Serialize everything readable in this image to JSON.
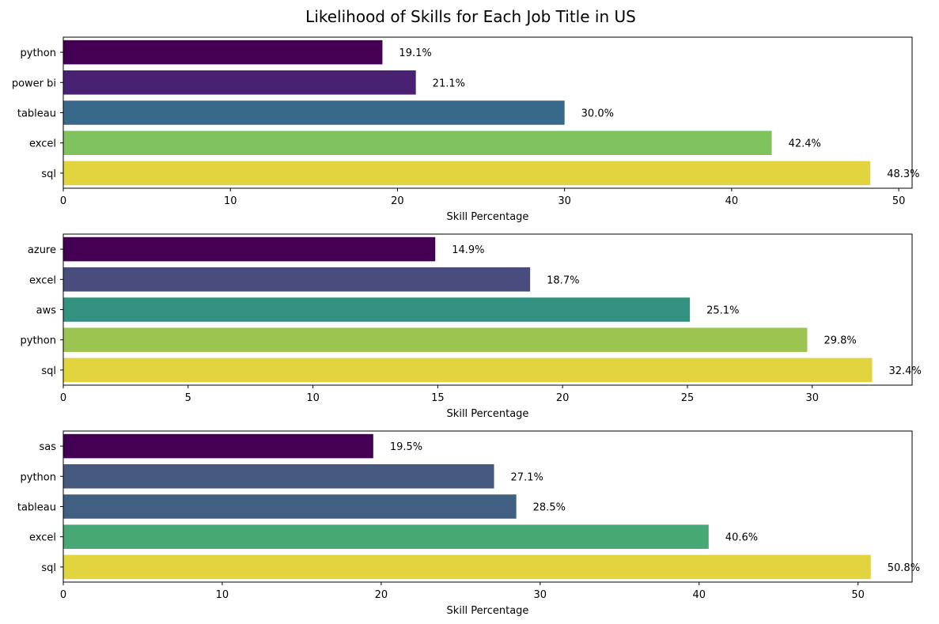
{
  "figure": {
    "title": "Likelihood of Skills for Each Job Title in US"
  },
  "chart_data": [
    {
      "type": "bar",
      "orientation": "horizontal",
      "categories": [
        "python",
        "power bi",
        "tableau",
        "excel",
        "sql"
      ],
      "values": [
        19.1,
        21.1,
        30.0,
        42.4,
        48.3
      ],
      "value_labels": [
        "19.1%",
        "21.1%",
        "30.0%",
        "42.4%",
        "48.3%"
      ],
      "colors": [
        "#440154",
        "#482173",
        "#39698a",
        "#80c25e",
        "#e1d43f"
      ],
      "xlabel": "Skill Percentage",
      "ylabel": "",
      "xlim": [
        0,
        50.8
      ],
      "xticks": [
        0,
        10,
        20,
        30,
        40,
        50
      ],
      "grid": false,
      "legend": "none"
    },
    {
      "type": "bar",
      "orientation": "horizontal",
      "categories": [
        "azure",
        "excel",
        "aws",
        "python",
        "sql"
      ],
      "values": [
        14.9,
        18.7,
        25.1,
        29.8,
        32.4
      ],
      "value_labels": [
        "14.9%",
        "18.7%",
        "25.1%",
        "29.8%",
        "32.4%"
      ],
      "colors": [
        "#440154",
        "#484d7e",
        "#32927f",
        "#9bc450",
        "#e1d43f"
      ],
      "xlabel": "Skill Percentage",
      "ylabel": "",
      "xlim": [
        0,
        34
      ],
      "xticks": [
        0,
        5,
        10,
        15,
        20,
        25,
        30
      ],
      "grid": false,
      "legend": "none"
    },
    {
      "type": "bar",
      "orientation": "horizontal",
      "categories": [
        "sas",
        "python",
        "tableau",
        "excel",
        "sql"
      ],
      "values": [
        19.5,
        27.1,
        28.5,
        40.6,
        50.8
      ],
      "value_labels": [
        "19.5%",
        "27.1%",
        "28.5%",
        "40.6%",
        "50.8%"
      ],
      "colors": [
        "#440154",
        "#45597f",
        "#415f82",
        "#47a775",
        "#e1d43f"
      ],
      "xlabel": "Skill Percentage",
      "ylabel": "",
      "xlim": [
        0,
        53.4
      ],
      "xticks": [
        0,
        10,
        20,
        30,
        40,
        50
      ],
      "grid": false,
      "legend": "none"
    }
  ]
}
